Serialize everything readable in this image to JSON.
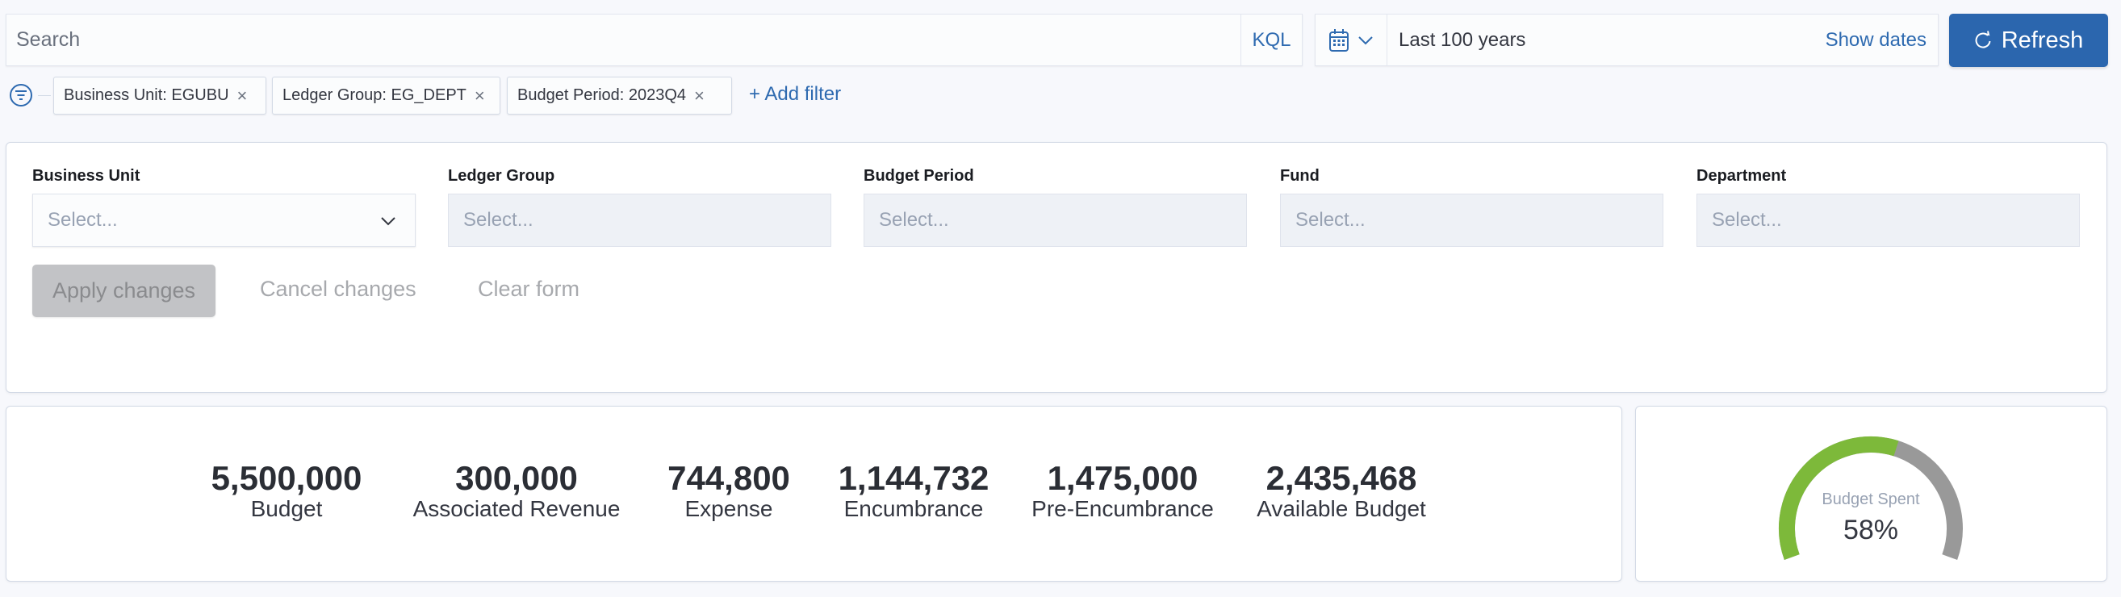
{
  "query_bar": {
    "search_placeholder": "Search",
    "search_value": "",
    "language_toggle": "KQL",
    "date_quick_icon": "calendar-icon",
    "date_range": "Last 100 years",
    "show_dates": "Show dates",
    "refresh_label": "Refresh",
    "refresh_icon": "refresh-icon",
    "accent_color": "#2b66ae"
  },
  "filters": {
    "pills": [
      {
        "label": "Business Unit: EGUBU"
      },
      {
        "label": "Ledger Group: EG_DEPT"
      },
      {
        "label": "Budget Period: 2023Q4"
      }
    ],
    "remove_glyph": "×",
    "add_filter": "+ Add filter"
  },
  "controls": {
    "fields": [
      {
        "label": "Business Unit",
        "placeholder": "Select...",
        "enabled": true
      },
      {
        "label": "Ledger Group",
        "placeholder": "Select...",
        "enabled": false
      },
      {
        "label": "Budget Period",
        "placeholder": "Select...",
        "enabled": false
      },
      {
        "label": "Fund",
        "placeholder": "Select...",
        "enabled": false
      },
      {
        "label": "Department",
        "placeholder": "Select...",
        "enabled": false
      }
    ],
    "apply_label": "Apply changes",
    "cancel_label": "Cancel changes",
    "clear_label": "Clear form"
  },
  "metrics": [
    {
      "value": "5,500,000",
      "label": "Budget"
    },
    {
      "value": "300,000",
      "label": "Associated Revenue"
    },
    {
      "value": "744,800",
      "label": "Expense"
    },
    {
      "value": "1,144,732",
      "label": "Encumbrance"
    },
    {
      "value": "1,475,000",
      "label": "Pre-Encumbrance"
    },
    {
      "value": "2,435,468",
      "label": "Available Budget"
    }
  ],
  "gauge": {
    "title": "Budget Spent",
    "value_text": "58%",
    "percent": 58,
    "fill_color": "#7db93a",
    "track_color": "#999999"
  }
}
